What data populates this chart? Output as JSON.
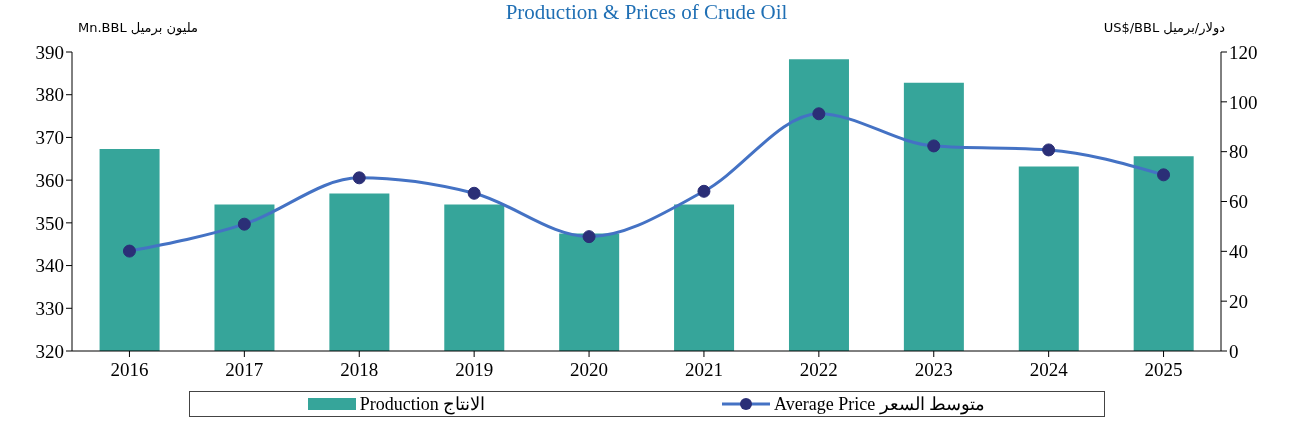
{
  "chart_data": {
    "type": "bar",
    "title": "Production & Prices of Crude Oil",
    "ylabel": "Mn.BBL  مليون برميل",
    "y2label": "US$/BBL  دولار/برميل",
    "categories": [
      "2016",
      "2017",
      "2018",
      "2019",
      "2020",
      "2021",
      "2022",
      "2023",
      "2024",
      "2025"
    ],
    "series": [
      {
        "name": "Production الانتاج",
        "color": "#36a59a",
        "values": [
          367.3,
          354.3,
          356.9,
          354.3,
          347.5,
          354.3,
          388.3,
          382.8,
          363.2,
          365.6
        ]
      },
      {
        "type": "line",
        "name": "Average Price متوسط السعر",
        "color": "#4472c4",
        "axis": "y2",
        "values": [
          40.1,
          50.9,
          69.5,
          63.3,
          45.9,
          64.1,
          95.2,
          82.3,
          80.7,
          70.7
        ]
      }
    ],
    "ylim": [
      320,
      390
    ],
    "yticks": [
      320,
      330,
      340,
      350,
      360,
      370,
      380,
      390
    ],
    "y2lim": [
      0,
      120
    ],
    "y2ticks": [
      0,
      20,
      40,
      60,
      80,
      100,
      120
    ],
    "marker": "circle",
    "legend": "bottom",
    "grid": false
  }
}
